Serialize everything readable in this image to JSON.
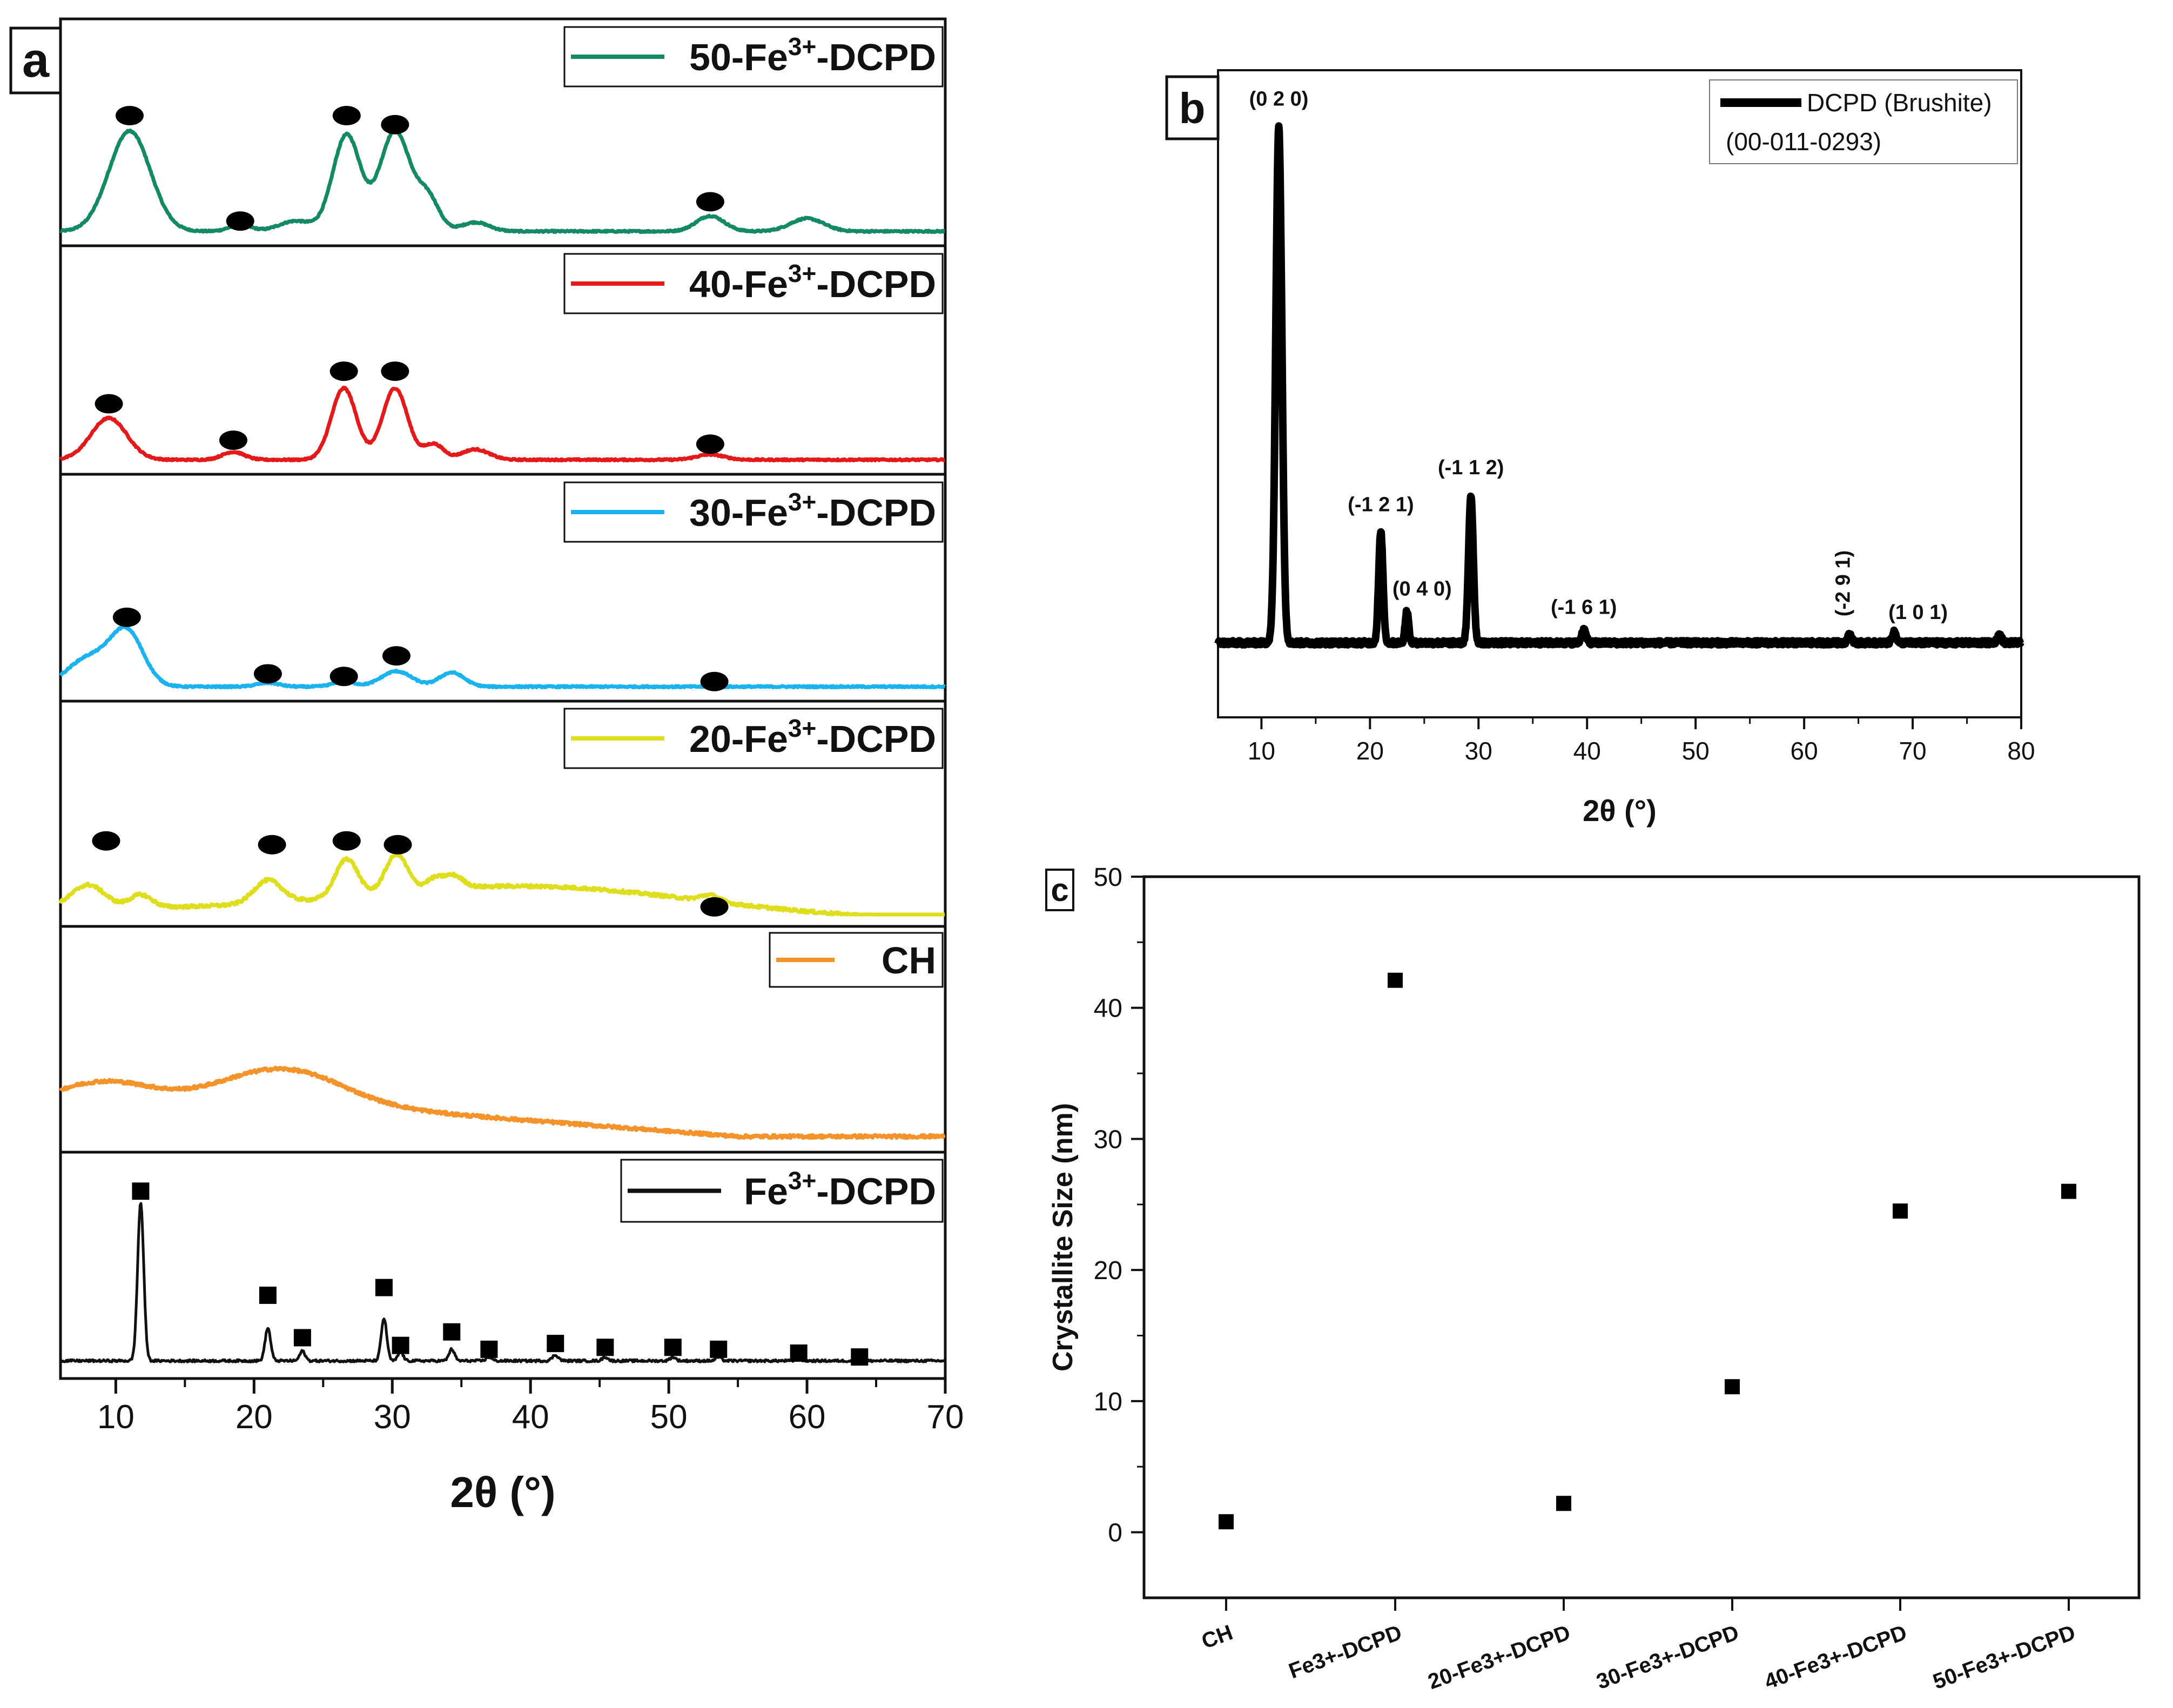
{
  "panels": {
    "a": {
      "label": "a"
    },
    "b": {
      "label": "b"
    },
    "c": {
      "label": "c"
    }
  },
  "chart_data": [
    {
      "id": "a",
      "type": "line",
      "title": "",
      "xlabel": "2θ (°)",
      "ylabel": "",
      "xlim": [
        6,
        70
      ],
      "xticks": [
        10,
        20,
        30,
        40,
        50,
        60,
        70
      ],
      "series": [
        {
          "name_main": "50-Fe",
          "name_sup": "3+",
          "name_tail": "-DCPD",
          "color": "#138a63",
          "peaks": [
            [
              11,
              0.78,
              1.5
            ],
            [
              19,
              0.05,
              0.8
            ],
            [
              23,
              0.08,
              1.2
            ],
            [
              26.7,
              0.75,
              1.0
            ],
            [
              30.2,
              0.78,
              1.1
            ],
            [
              32.6,
              0.25,
              0.8
            ],
            [
              36,
              0.07,
              1.0
            ],
            [
              53,
              0.12,
              1.0
            ],
            [
              60,
              0.1,
              1.2
            ]
          ],
          "baseline": 0.02,
          "markers": {
            "shape": "ellipse",
            "x": [
              11,
              19,
              26.7,
              30.2,
              53
            ],
            "y": [
              0.92,
              0.1,
              0.92,
              0.85,
              0.25
            ]
          }
        },
        {
          "name_main": "40-Fe",
          "name_sup": "3+",
          "name_tail": "-DCPD",
          "color": "#e5181a",
          "peaks": [
            [
              9.5,
              0.32,
              1.3
            ],
            [
              18.5,
              0.06,
              0.8
            ],
            [
              26.5,
              0.55,
              0.9
            ],
            [
              30.2,
              0.55,
              0.9
            ],
            [
              33,
              0.12,
              0.7
            ],
            [
              36,
              0.08,
              1.0
            ],
            [
              53,
              0.04,
              1.0
            ]
          ],
          "baseline": 0.02,
          "markers": {
            "shape": "ellipse",
            "x": [
              9.5,
              18.5,
              26.5,
              30.2,
              53
            ],
            "y": [
              0.45,
              0.17,
              0.7,
              0.7,
              0.14
            ]
          }
        },
        {
          "name_main": "30-Fe",
          "name_sup": "3+",
          "name_tail": "-DCPD",
          "color": "#1ab3ef",
          "peaks": [
            [
              8,
              0.22,
              1.5
            ],
            [
              10.8,
              0.42,
              1.2
            ],
            [
              21,
              0.03,
              0.8
            ],
            [
              26.5,
              0.04,
              0.8
            ],
            [
              30.3,
              0.12,
              1.1
            ],
            [
              34.3,
              0.11,
              0.9
            ]
          ],
          "baseline": 0.02,
          "markers": {
            "shape": "ellipse",
            "x": [
              10.8,
              21,
              26.5,
              30.3,
              53.3
            ],
            "y": [
              0.56,
              0.12,
              0.1,
              0.26,
              0.06
            ]
          }
        },
        {
          "name_main": "20-Fe",
          "name_sup": "3+",
          "name_tail": "-DCPD",
          "color": "#dede1c",
          "peaks": [
            [
              8,
              0.18,
              1.2
            ],
            [
              11.8,
              0.1,
              0.8
            ],
            [
              21,
              0.18,
              1.0
            ],
            [
              26.7,
              0.3,
              0.8
            ],
            [
              30.3,
              0.3,
              0.8
            ],
            [
              33,
              0.08,
              0.6
            ],
            [
              34.4,
              0.1,
              0.7
            ],
            [
              53,
              0.05,
              0.7
            ]
          ],
          "baseline": 0.05,
          "markers": {
            "shape": "ellipse",
            "x": [
              9.3,
              21.3,
              26.7,
              30.4,
              53.3
            ],
            "y": [
              0.58,
              0.55,
              0.58,
              0.55,
              0.06
            ]
          }
        },
        {
          "name_main": "CH",
          "name_sup": "",
          "name_tail": "",
          "color": "#f39329",
          "peaks": [
            [
              9.2,
              0.18,
              3.5
            ],
            [
              21.8,
              0.28,
              4.3
            ]
          ],
          "baseline": 0.02,
          "markers": {
            "shape": "none",
            "x": [],
            "y": []
          }
        },
        {
          "name_main": "Fe",
          "name_sup": "3+",
          "name_tail": "-DCPD",
          "color": "#111111",
          "peaks": [
            [
              11.8,
              0.82,
              0.22
            ],
            [
              21,
              0.17,
              0.2
            ],
            [
              23.5,
              0.05,
              0.2
            ],
            [
              29.4,
              0.22,
              0.2
            ],
            [
              30.6,
              0.05,
              0.18
            ],
            [
              34.3,
              0.06,
              0.2
            ],
            [
              37,
              0.02,
              0.2
            ],
            [
              41.8,
              0.03,
              0.22
            ],
            [
              45.4,
              0.02,
              0.2
            ],
            [
              50.3,
              0.02,
              0.2
            ],
            [
              53.6,
              0.02,
              0.2
            ],
            [
              59.4,
              0.01,
              0.2
            ],
            [
              63.8,
              0.01,
              0.2
            ]
          ],
          "baseline": 0.03,
          "markers": {
            "shape": "square",
            "x": [
              11.8,
              21,
              23.5,
              29.4,
              30.6,
              34.3,
              37,
              41.8,
              45.4,
              50.3,
              53.6,
              59.4,
              63.8
            ],
            "y": [
              0.91,
              0.37,
              0.15,
              0.41,
              0.11,
              0.18,
              0.09,
              0.12,
              0.1,
              0.1,
              0.09,
              0.07,
              0.05
            ]
          }
        }
      ]
    },
    {
      "id": "b",
      "type": "line",
      "title": "",
      "xlabel": "2θ (°)",
      "ylabel": "",
      "xlim": [
        6,
        80
      ],
      "xticks": [
        10,
        20,
        30,
        40,
        50,
        60,
        70,
        80
      ],
      "legend": {
        "entry": "DCPD (Brushite)",
        "reference": "(00-011-0293)",
        "placement": "top-right"
      },
      "series": [
        {
          "name": "DCPD (Brushite)",
          "color": "#000000",
          "peaks": [
            [
              11.6,
              0.98,
              0.28
            ],
            [
              21,
              0.21,
              0.2
            ],
            [
              23.4,
              0.06,
              0.16
            ],
            [
              29.3,
              0.28,
              0.22
            ],
            [
              39.7,
              0.025,
              0.2
            ],
            [
              64.2,
              0.015,
              0.2
            ],
            [
              68.3,
              0.02,
              0.2
            ],
            [
              78,
              0.015,
              0.2
            ]
          ],
          "baseline": 0.0
        }
      ],
      "annotations": [
        {
          "text": "(0 2 0)",
          "x": 11.6,
          "y": 1.02
        },
        {
          "text": "(-1 2 1)",
          "x": 21.0,
          "y": 0.25
        },
        {
          "text": "(0 4 0)",
          "x": 24.8,
          "y": 0.09
        },
        {
          "text": "(-1 1 2)",
          "x": 29.3,
          "y": 0.32
        },
        {
          "text": "(-1 6 1)",
          "x": 39.7,
          "y": 0.055
        },
        {
          "text": "(-2 9 1)",
          "x": 64.2,
          "y": 0.05,
          "rotate": -90
        },
        {
          "text": "(1 0 1)",
          "x": 70.5,
          "y": 0.045
        }
      ]
    },
    {
      "id": "c",
      "type": "scatter",
      "title": "",
      "xlabel": "",
      "ylabel": "Crystallite Size (nm)",
      "ylim": [
        -5,
        50
      ],
      "yticks": [
        0,
        10,
        20,
        30,
        40,
        50
      ],
      "categories": [
        "CH",
        "Fe3+-DCPD",
        "20-Fe3+-DCPD",
        "30-Fe3+-DCPD",
        "40-Fe3+-DCPD",
        "50-Fe3+-DCPD"
      ],
      "values": [
        0.8,
        42.1,
        2.2,
        11.1,
        24.5,
        26.0
      ]
    }
  ]
}
